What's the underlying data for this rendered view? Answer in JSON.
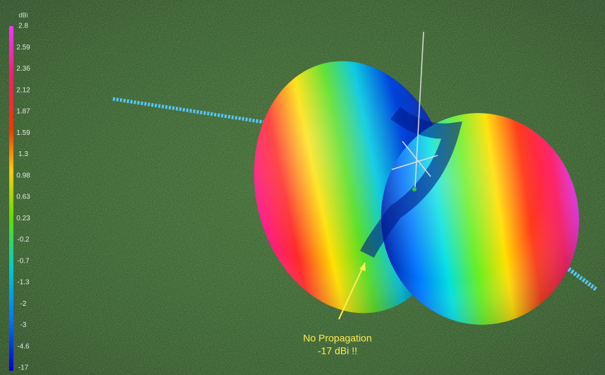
{
  "colorbar": {
    "unit": "dBi",
    "labels": [
      "2.8",
      "2.59",
      "2.36",
      "2.12",
      "1.87",
      "1.59",
      "1.3",
      "0.98",
      "0.63",
      "0.23",
      "-0.2",
      "-0.7",
      "-1.3",
      "-2",
      "-3",
      "-4.6",
      "-17"
    ]
  },
  "annotation": {
    "line1": "No Propagation",
    "line2": "-17 dBi  !!"
  }
}
